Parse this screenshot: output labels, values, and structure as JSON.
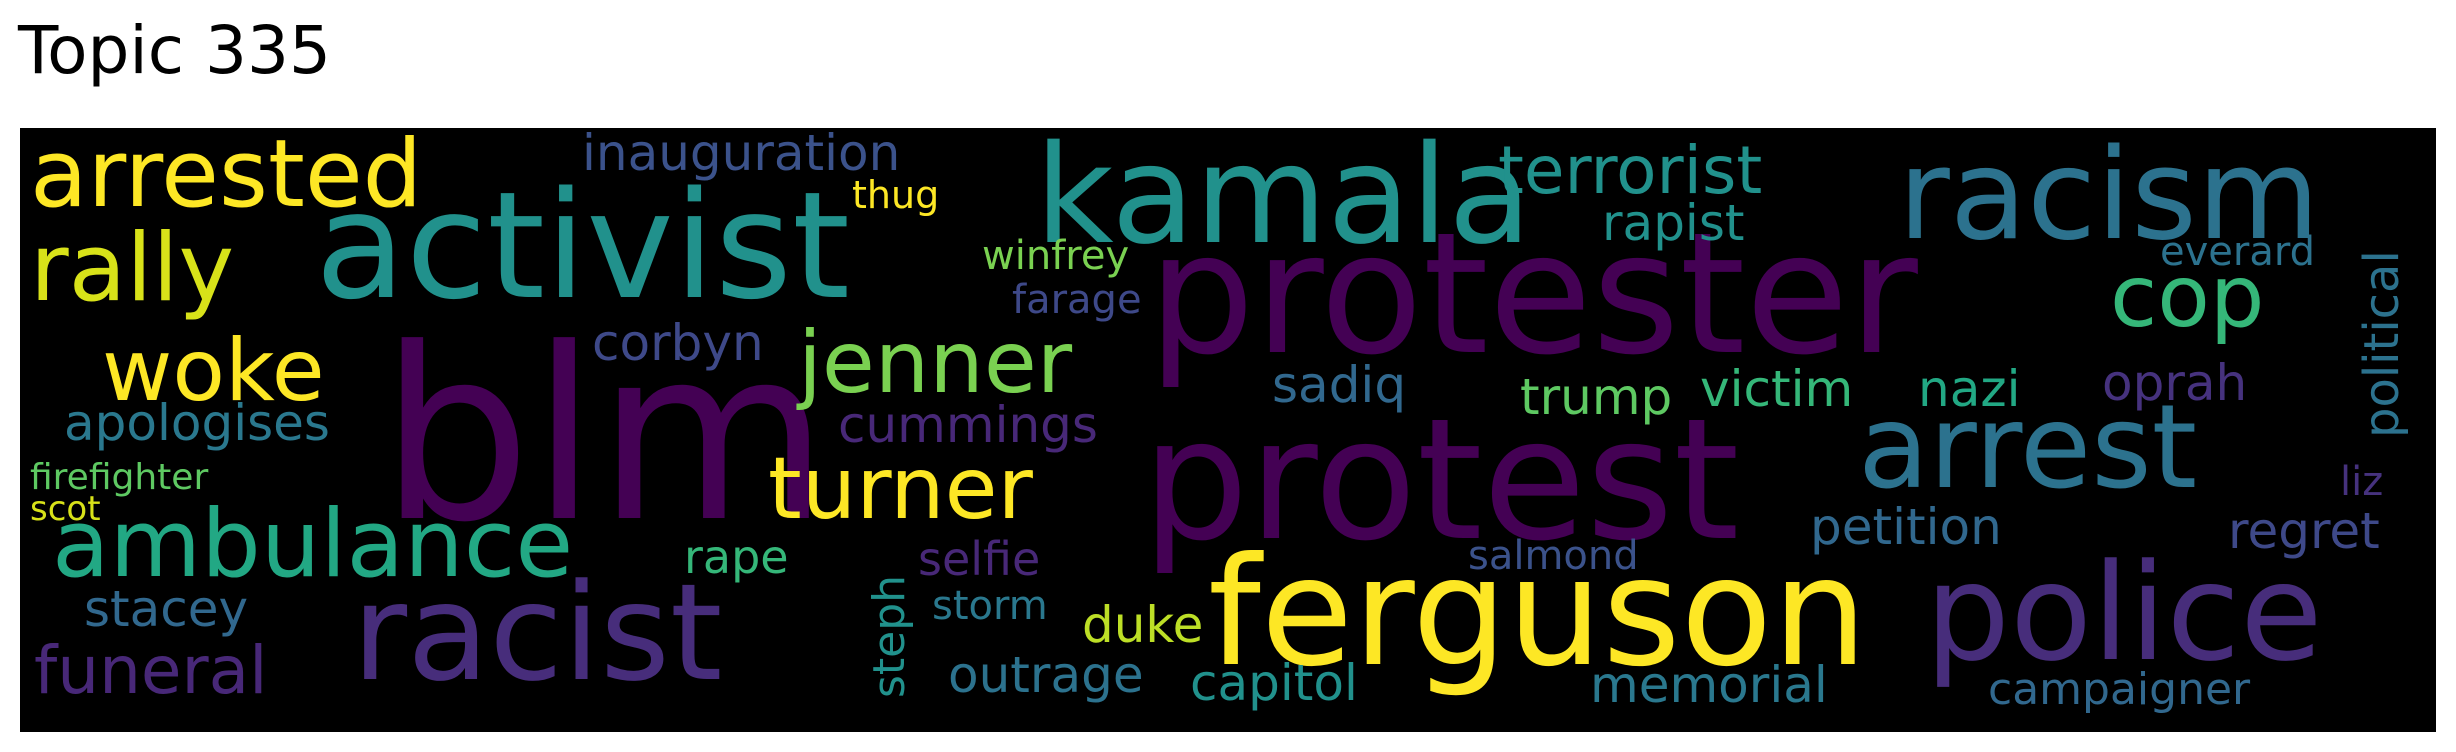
{
  "title": "Topic 335",
  "words": [
    {
      "text": "blm",
      "color": "#440154"
    },
    {
      "text": "protester",
      "color": "#440154"
    },
    {
      "text": "protest",
      "color": "#440154"
    },
    {
      "text": "activist",
      "color": "#21918c"
    },
    {
      "text": "kamala",
      "color": "#21918c"
    },
    {
      "text": "racism",
      "color": "#2c728e"
    },
    {
      "text": "ferguson",
      "color": "#fde725"
    },
    {
      "text": "police",
      "color": "#472d7b"
    },
    {
      "text": "racist",
      "color": "#472d7b"
    },
    {
      "text": "arrest",
      "color": "#2c728e"
    },
    {
      "text": "arrested",
      "color": "#fde725"
    },
    {
      "text": "rally",
      "color": "#d8e219"
    },
    {
      "text": "ambulance",
      "color": "#22a884"
    },
    {
      "text": "turner",
      "color": "#fde725"
    },
    {
      "text": "jenner",
      "color": "#7ad151"
    },
    {
      "text": "woke",
      "color": "#fde725"
    },
    {
      "text": "terrorist",
      "color": "#21918c"
    },
    {
      "text": "cop",
      "color": "#35b779"
    },
    {
      "text": "funeral",
      "color": "#482878"
    },
    {
      "text": "inauguration",
      "color": "#3b528b"
    },
    {
      "text": "political",
      "color": "#2c728e"
    },
    {
      "text": "apologises",
      "color": "#2a788e"
    },
    {
      "text": "corbyn",
      "color": "#3e4989"
    },
    {
      "text": "cummings",
      "color": "#482878"
    },
    {
      "text": "sadiq",
      "color": "#31688e"
    },
    {
      "text": "trump",
      "color": "#5ec962"
    },
    {
      "text": "victim",
      "color": "#35b779"
    },
    {
      "text": "nazi",
      "color": "#22a884"
    },
    {
      "text": "oprah",
      "color": "#46327e"
    },
    {
      "text": "rapist",
      "color": "#21918c"
    },
    {
      "text": "everard",
      "color": "#2c728e"
    },
    {
      "text": "winfrey",
      "color": "#7ad151"
    },
    {
      "text": "thug",
      "color": "#fde725"
    },
    {
      "text": "farage",
      "color": "#3e4989"
    },
    {
      "text": "petition",
      "color": "#31688e"
    },
    {
      "text": "regret",
      "color": "#3e4989"
    },
    {
      "text": "liz",
      "color": "#46327e"
    },
    {
      "text": "salmond",
      "color": "#3b528b"
    },
    {
      "text": "selfie",
      "color": "#482878"
    },
    {
      "text": "rape",
      "color": "#35b779"
    },
    {
      "text": "steph",
      "color": "#21918c"
    },
    {
      "text": "storm",
      "color": "#2a788e"
    },
    {
      "text": "duke",
      "color": "#bddf26"
    },
    {
      "text": "stacey",
      "color": "#31688e"
    },
    {
      "text": "outrage",
      "color": "#2c728e"
    },
    {
      "text": "capitol",
      "color": "#21918c"
    },
    {
      "text": "memorial",
      "color": "#2a788e"
    },
    {
      "text": "campaigner",
      "color": "#31688e"
    },
    {
      "text": "firefighter",
      "color": "#5ec962"
    },
    {
      "text": "scot",
      "color": "#d8e219"
    }
  ]
}
